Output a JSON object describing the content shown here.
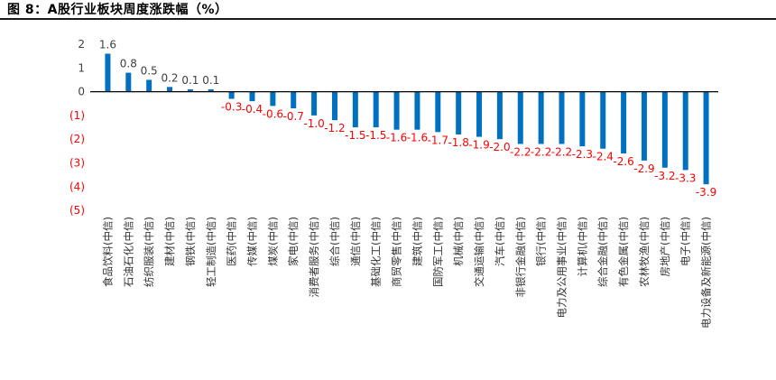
{
  "figure": {
    "title": "图 8：A股行业板块周度涨跌幅（%）"
  },
  "colors": {
    "bar": "#0070C0",
    "positive_label": "#404040",
    "negative_label": "#FF0000",
    "axis": "#000000"
  },
  "chart_data": {
    "type": "bar",
    "title": "",
    "xlabel": "",
    "ylabel": "",
    "ylim": [
      -5,
      2
    ],
    "yticks": [
      2,
      1,
      0,
      -1,
      -2,
      -3,
      -4,
      -5
    ],
    "ytick_labels": [
      "2",
      "1",
      "0",
      "(1)",
      "(2)",
      "(3)",
      "(4)",
      "(5)"
    ],
    "grid": false,
    "legend": "none",
    "categories": [
      "食品饮料(中信)",
      "石油石化(中信)",
      "纺织服装(中信)",
      "建材(中信)",
      "钢铁(中信)",
      "轻工制造(中信)",
      "医药(中信)",
      "传媒(中信)",
      "煤炭(中信)",
      "家电(中信)",
      "消费者服务(中信)",
      "综合(中信)",
      "通信(中信)",
      "基础化工(中信)",
      "商贸零售(中信)",
      "建筑(中信)",
      "国防军工(中信)",
      "机械(中信)",
      "交通运输(中信)",
      "汽车(中信)",
      "非银行金融(中信)",
      "银行(中信)",
      "电力及公用事业(中信)",
      "计算机(中信)",
      "综合金融(中信)",
      "有色金属(中信)",
      "农林牧渔(中信)",
      "房地产(中信)",
      "电子(中信)",
      "电力设备及新能源(中信)"
    ],
    "values": [
      1.6,
      0.8,
      0.5,
      0.2,
      0.1,
      0.1,
      -0.3,
      -0.4,
      -0.6,
      -0.7,
      -1.0,
      -1.2,
      -1.5,
      -1.5,
      -1.6,
      -1.6,
      -1.7,
      -1.8,
      -1.9,
      -2.0,
      -2.2,
      -2.2,
      -2.2,
      -2.3,
      -2.4,
      -2.6,
      -2.9,
      -3.2,
      -3.3,
      -3.9
    ],
    "data_labels": [
      "1.6",
      "0.8",
      "0.5",
      "0.2",
      "0.1",
      "0.1",
      "-0.3",
      "-0.4",
      "-0.6",
      "-0.7",
      "-1.0",
      "-1.2",
      "-1.5",
      "-1.5",
      "-1.6",
      "-1.6",
      "-1.7",
      "-1.8",
      "-1.9",
      "-2.0",
      "-2.2",
      "-2.2",
      "-2.2",
      "-2.3",
      "-2.4",
      "-2.6",
      "-2.9",
      "-3.2",
      "-3.3",
      "-3.9"
    ]
  }
}
